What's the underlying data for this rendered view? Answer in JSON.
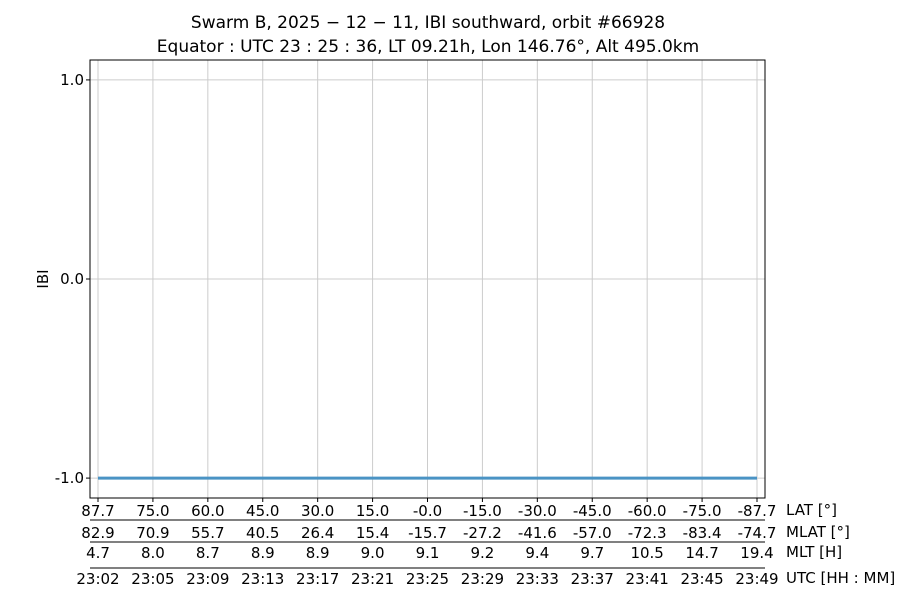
{
  "chart_data": {
    "type": "line",
    "title": "Swarm B,  2025 − 12 − 11,  IBI southward,  orbit #66928",
    "subtitle": "Equator :  UTC 23 : 25 : 36,  LT 09.21h,  Lon 146.76°,  Alt 495.0km",
    "ylabel": "IBI",
    "ylim": [
      -1.1,
      1.1
    ],
    "yticks": [
      -1.0,
      0.0,
      1.0
    ],
    "ytick_labels": [
      "-1.0",
      "0.0",
      "1.0"
    ],
    "grid": true,
    "x_rows": [
      {
        "name": "LAT [°]",
        "labels": [
          "87.7",
          "75.0",
          "60.0",
          "45.0",
          "30.0",
          "15.0",
          "-0.0",
          "-15.0",
          "-30.0",
          "-45.0",
          "-60.0",
          "-75.0",
          "-87.7"
        ]
      },
      {
        "name": "MLAT [°]",
        "labels": [
          "82.9",
          "70.9",
          "55.7",
          "40.5",
          "26.4",
          "15.4",
          "-15.7",
          "-27.2",
          "-41.6",
          "-57.0",
          "-72.3",
          "-83.4",
          "-74.7"
        ]
      },
      {
        "name": "MLT [H]",
        "labels": [
          "4.7",
          "8.0",
          "8.7",
          "8.9",
          "8.9",
          "9.0",
          "9.1",
          "9.2",
          "9.4",
          "9.7",
          "10.5",
          "14.7",
          "19.4"
        ]
      },
      {
        "name": "UTC [HH : MM]",
        "labels": [
          "23:02",
          "23:05",
          "23:09",
          "23:13",
          "23:17",
          "23:21",
          "23:25",
          "23:29",
          "23:33",
          "23:37",
          "23:41",
          "23:45",
          "23:49"
        ]
      }
    ],
    "series": [
      {
        "color": "#4a93c4",
        "x": [
          0,
          12
        ],
        "y": [
          -1.0,
          -1.0
        ]
      }
    ]
  }
}
